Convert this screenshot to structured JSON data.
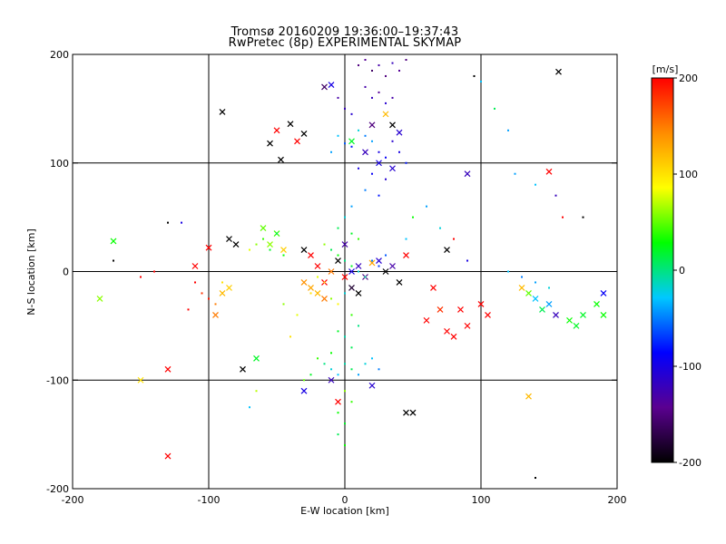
{
  "chart_data": {
    "type": "scatter",
    "title": "Tromsø 20160209 19:36:00–19:37:43",
    "subtitle": "RwPretec (8p) EXPERIMENTAL SKYMAP",
    "xlabel": "E-W location [km]",
    "ylabel": "N-S location [km]",
    "xlim": [
      -200,
      200
    ],
    "ylim": [
      -200,
      200
    ],
    "xticks": [
      -200,
      -100,
      0,
      100,
      200
    ],
    "yticks": [
      -200,
      -100,
      0,
      100,
      200
    ],
    "grid": true,
    "colorbar": {
      "label": "[m/s]",
      "range": [
        -200,
        200
      ],
      "ticks": [
        200,
        100,
        0,
        -100,
        -200
      ],
      "colormap": [
        "#000000",
        "#5a0090",
        "#0000ff",
        "#00c8ff",
        "#00ff00",
        "#ffff00",
        "#ff8c00",
        "#ff0000"
      ]
    },
    "series": [
      {
        "marker": "x",
        "points": [
          [
            -90,
            147,
            -200
          ],
          [
            -15,
            170,
            -160
          ],
          [
            -10,
            172,
            -100
          ],
          [
            157,
            184,
            -200
          ],
          [
            -50,
            130,
            200
          ],
          [
            -40,
            136,
            -200
          ],
          [
            -35,
            120,
            200
          ],
          [
            -47,
            103,
            -200
          ],
          [
            -30,
            127,
            -200
          ],
          [
            -55,
            118,
            -200
          ],
          [
            20,
            135,
            -150
          ],
          [
            30,
            145,
            120
          ],
          [
            35,
            135,
            -200
          ],
          [
            40,
            128,
            -110
          ],
          [
            15,
            110,
            -120
          ],
          [
            35,
            95,
            -110
          ],
          [
            90,
            90,
            -120
          ],
          [
            150,
            92,
            200
          ],
          [
            5,
            120,
            20
          ],
          [
            25,
            100,
            -100
          ],
          [
            -170,
            28,
            30
          ],
          [
            -100,
            22,
            200
          ],
          [
            -110,
            5,
            200
          ],
          [
            -95,
            -40,
            150
          ],
          [
            -85,
            30,
            -200
          ],
          [
            -80,
            25,
            -200
          ],
          [
            -60,
            40,
            50
          ],
          [
            -55,
            25,
            60
          ],
          [
            -50,
            35,
            40
          ],
          [
            -45,
            20,
            110
          ],
          [
            -30,
            20,
            -200
          ],
          [
            -25,
            15,
            200
          ],
          [
            -20,
            5,
            200
          ],
          [
            -15,
            -10,
            200
          ],
          [
            -10,
            0,
            150
          ],
          [
            -5,
            10,
            -200
          ],
          [
            0,
            -5,
            200
          ],
          [
            5,
            0,
            -100
          ],
          [
            10,
            5,
            -120
          ],
          [
            15,
            -5,
            -150
          ],
          [
            20,
            8,
            130
          ],
          [
            25,
            10,
            -110
          ],
          [
            30,
            0,
            -200
          ],
          [
            35,
            5,
            -130
          ],
          [
            45,
            15,
            200
          ],
          [
            65,
            -15,
            200
          ],
          [
            70,
            -35,
            180
          ],
          [
            60,
            -45,
            200
          ],
          [
            75,
            -55,
            200
          ],
          [
            80,
            -60,
            200
          ],
          [
            85,
            -35,
            200
          ],
          [
            90,
            -50,
            200
          ],
          [
            100,
            -30,
            200
          ],
          [
            105,
            -40,
            200
          ],
          [
            75,
            20,
            -200
          ],
          [
            40,
            -10,
            -200
          ],
          [
            -130,
            -90,
            200
          ],
          [
            -130,
            -170,
            200
          ],
          [
            -180,
            -25,
            60
          ],
          [
            -150,
            -100,
            100
          ],
          [
            -90,
            -20,
            120
          ],
          [
            -85,
            -15,
            110
          ],
          [
            -75,
            -90,
            -200
          ],
          [
            -65,
            -80,
            20
          ],
          [
            -30,
            -110,
            -100
          ],
          [
            -10,
            -100,
            -120
          ],
          [
            20,
            -105,
            -110
          ],
          [
            45,
            -130,
            -200
          ],
          [
            135,
            -115,
            120
          ],
          [
            130,
            -15,
            120
          ],
          [
            135,
            -20,
            50
          ],
          [
            140,
            -25,
            -30
          ],
          [
            145,
            -35,
            10
          ],
          [
            150,
            -30,
            -40
          ],
          [
            155,
            -40,
            -120
          ],
          [
            165,
            -45,
            30
          ],
          [
            170,
            -50,
            20
          ],
          [
            175,
            -40,
            20
          ],
          [
            185,
            -30,
            30
          ],
          [
            190,
            -20,
            -90
          ],
          [
            190,
            -40,
            30
          ],
          [
            50,
            -130,
            -200
          ],
          [
            -5,
            -120,
            200
          ],
          [
            0,
            25,
            -130
          ],
          [
            -20,
            -20,
            120
          ],
          [
            -15,
            -25,
            150
          ],
          [
            -25,
            -15,
            130
          ],
          [
            -30,
            -10,
            140
          ],
          [
            5,
            -15,
            -180
          ],
          [
            10,
            -20,
            -200
          ]
        ]
      },
      {
        "marker": "dot",
        "points": [
          [
            10,
            190,
            -150
          ],
          [
            15,
            195,
            -140
          ],
          [
            20,
            185,
            -160
          ],
          [
            25,
            190,
            -130
          ],
          [
            30,
            180,
            -150
          ],
          [
            35,
            192,
            -120
          ],
          [
            40,
            185,
            -140
          ],
          [
            45,
            195,
            -150
          ],
          [
            15,
            170,
            -130
          ],
          [
            20,
            160,
            -120
          ],
          [
            25,
            165,
            -140
          ],
          [
            30,
            155,
            -110
          ],
          [
            35,
            160,
            -130
          ],
          [
            0,
            150,
            -120
          ],
          [
            5,
            145,
            -110
          ],
          [
            -5,
            160,
            -130
          ],
          [
            10,
            130,
            -20
          ],
          [
            15,
            125,
            -50
          ],
          [
            20,
            120,
            -40
          ],
          [
            -5,
            125,
            -30
          ],
          [
            0,
            118,
            -60
          ],
          [
            5,
            115,
            -80
          ],
          [
            -10,
            110,
            -40
          ],
          [
            25,
            110,
            -100
          ],
          [
            30,
            105,
            -90
          ],
          [
            35,
            120,
            -110
          ],
          [
            40,
            110,
            -100
          ],
          [
            45,
            100,
            -80
          ],
          [
            10,
            95,
            -100
          ],
          [
            20,
            90,
            -90
          ],
          [
            30,
            85,
            -110
          ],
          [
            15,
            75,
            -50
          ],
          [
            25,
            70,
            -80
          ],
          [
            5,
            60,
            -40
          ],
          [
            0,
            50,
            -20
          ],
          [
            -5,
            40,
            10
          ],
          [
            5,
            35,
            20
          ],
          [
            10,
            30,
            40
          ],
          [
            -15,
            25,
            60
          ],
          [
            -10,
            20,
            10
          ],
          [
            -5,
            15,
            30
          ],
          [
            0,
            10,
            0
          ],
          [
            5,
            5,
            20
          ],
          [
            10,
            0,
            -20
          ],
          [
            15,
            -5,
            -10
          ],
          [
            20,
            10,
            -50
          ],
          [
            25,
            5,
            -70
          ],
          [
            30,
            15,
            -60
          ],
          [
            -20,
            -5,
            80
          ],
          [
            -15,
            -10,
            120
          ],
          [
            -25,
            -20,
            100
          ],
          [
            -10,
            -25,
            60
          ],
          [
            -5,
            -30,
            90
          ],
          [
            0,
            -20,
            -20
          ],
          [
            5,
            -40,
            40
          ],
          [
            10,
            -50,
            0
          ],
          [
            -5,
            -55,
            20
          ],
          [
            0,
            -60,
            -10
          ],
          [
            5,
            -70,
            10
          ],
          [
            -10,
            -75,
            30
          ],
          [
            -15,
            -85,
            0
          ],
          [
            -10,
            -90,
            -20
          ],
          [
            -5,
            -95,
            -30
          ],
          [
            0,
            -85,
            -10
          ],
          [
            5,
            -90,
            10
          ],
          [
            10,
            -95,
            -40
          ],
          [
            15,
            -85,
            -20
          ],
          [
            20,
            -80,
            -30
          ],
          [
            25,
            -90,
            -50
          ],
          [
            -20,
            -80,
            40
          ],
          [
            -25,
            -95,
            20
          ],
          [
            -30,
            -100,
            50
          ],
          [
            0,
            -110,
            60
          ],
          [
            5,
            -120,
            40
          ],
          [
            -5,
            -130,
            30
          ],
          [
            0,
            -140,
            20
          ],
          [
            -5,
            -150,
            10
          ],
          [
            0,
            -160,
            30
          ],
          [
            -60,
            30,
            40
          ],
          [
            -55,
            20,
            20
          ],
          [
            -50,
            35,
            10
          ],
          [
            -45,
            15,
            30
          ],
          [
            -65,
            25,
            60
          ],
          [
            -70,
            20,
            80
          ],
          [
            -110,
            -10,
            200
          ],
          [
            -105,
            -20,
            180
          ],
          [
            -100,
            -25,
            190
          ],
          [
            -95,
            -30,
            150
          ],
          [
            -90,
            -10,
            100
          ],
          [
            -115,
            -35,
            200
          ],
          [
            -140,
            0,
            200
          ],
          [
            -150,
            -5,
            200
          ],
          [
            -170,
            10,
            -200
          ],
          [
            -130,
            45,
            -200
          ],
          [
            -120,
            45,
            -100
          ],
          [
            120,
            0,
            -30
          ],
          [
            130,
            -5,
            -50
          ],
          [
            140,
            -10,
            -40
          ],
          [
            150,
            -15,
            -20
          ],
          [
            125,
            90,
            -40
          ],
          [
            140,
            80,
            -30
          ],
          [
            155,
            70,
            -120
          ],
          [
            160,
            50,
            200
          ],
          [
            175,
            50,
            -200
          ],
          [
            95,
            180,
            -200
          ],
          [
            100,
            175,
            -30
          ],
          [
            110,
            150,
            10
          ],
          [
            120,
            130,
            -40
          ],
          [
            70,
            40,
            -20
          ],
          [
            80,
            30,
            200
          ],
          [
            90,
            10,
            -100
          ],
          [
            60,
            60,
            -40
          ],
          [
            50,
            50,
            30
          ],
          [
            45,
            30,
            -30
          ],
          [
            140,
            -190,
            -200
          ],
          [
            -45,
            -30,
            60
          ],
          [
            -35,
            -40,
            80
          ],
          [
            -40,
            -60,
            100
          ],
          [
            -65,
            -110,
            70
          ],
          [
            -70,
            -125,
            -30
          ]
        ]
      }
    ]
  }
}
